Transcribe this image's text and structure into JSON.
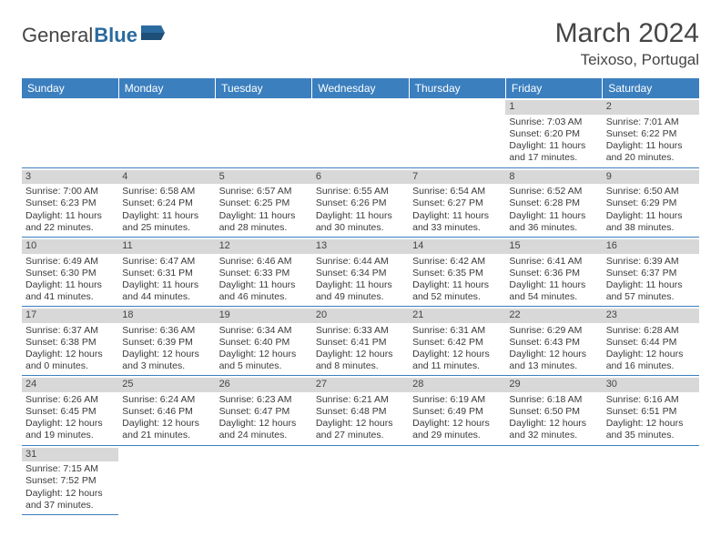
{
  "brand": {
    "part1": "General",
    "part2": "Blue"
  },
  "title": "March 2024",
  "location": "Teixoso, Portugal",
  "colors": {
    "header_bg": "#3b7fbf",
    "header_text": "#ffffff",
    "daynum_bg": "#d8d8d8",
    "text": "#3a3a3a",
    "rule": "#3b7fbf"
  },
  "weekdays": [
    "Sunday",
    "Monday",
    "Tuesday",
    "Wednesday",
    "Thursday",
    "Friday",
    "Saturday"
  ],
  "weeks": [
    [
      null,
      null,
      null,
      null,
      null,
      {
        "n": "1",
        "sr": "Sunrise: 7:03 AM",
        "ss": "Sunset: 6:20 PM",
        "d1": "Daylight: 11 hours",
        "d2": "and 17 minutes."
      },
      {
        "n": "2",
        "sr": "Sunrise: 7:01 AM",
        "ss": "Sunset: 6:22 PM",
        "d1": "Daylight: 11 hours",
        "d2": "and 20 minutes."
      }
    ],
    [
      {
        "n": "3",
        "sr": "Sunrise: 7:00 AM",
        "ss": "Sunset: 6:23 PM",
        "d1": "Daylight: 11 hours",
        "d2": "and 22 minutes."
      },
      {
        "n": "4",
        "sr": "Sunrise: 6:58 AM",
        "ss": "Sunset: 6:24 PM",
        "d1": "Daylight: 11 hours",
        "d2": "and 25 minutes."
      },
      {
        "n": "5",
        "sr": "Sunrise: 6:57 AM",
        "ss": "Sunset: 6:25 PM",
        "d1": "Daylight: 11 hours",
        "d2": "and 28 minutes."
      },
      {
        "n": "6",
        "sr": "Sunrise: 6:55 AM",
        "ss": "Sunset: 6:26 PM",
        "d1": "Daylight: 11 hours",
        "d2": "and 30 minutes."
      },
      {
        "n": "7",
        "sr": "Sunrise: 6:54 AM",
        "ss": "Sunset: 6:27 PM",
        "d1": "Daylight: 11 hours",
        "d2": "and 33 minutes."
      },
      {
        "n": "8",
        "sr": "Sunrise: 6:52 AM",
        "ss": "Sunset: 6:28 PM",
        "d1": "Daylight: 11 hours",
        "d2": "and 36 minutes."
      },
      {
        "n": "9",
        "sr": "Sunrise: 6:50 AM",
        "ss": "Sunset: 6:29 PM",
        "d1": "Daylight: 11 hours",
        "d2": "and 38 minutes."
      }
    ],
    [
      {
        "n": "10",
        "sr": "Sunrise: 6:49 AM",
        "ss": "Sunset: 6:30 PM",
        "d1": "Daylight: 11 hours",
        "d2": "and 41 minutes."
      },
      {
        "n": "11",
        "sr": "Sunrise: 6:47 AM",
        "ss": "Sunset: 6:31 PM",
        "d1": "Daylight: 11 hours",
        "d2": "and 44 minutes."
      },
      {
        "n": "12",
        "sr": "Sunrise: 6:46 AM",
        "ss": "Sunset: 6:33 PM",
        "d1": "Daylight: 11 hours",
        "d2": "and 46 minutes."
      },
      {
        "n": "13",
        "sr": "Sunrise: 6:44 AM",
        "ss": "Sunset: 6:34 PM",
        "d1": "Daylight: 11 hours",
        "d2": "and 49 minutes."
      },
      {
        "n": "14",
        "sr": "Sunrise: 6:42 AM",
        "ss": "Sunset: 6:35 PM",
        "d1": "Daylight: 11 hours",
        "d2": "and 52 minutes."
      },
      {
        "n": "15",
        "sr": "Sunrise: 6:41 AM",
        "ss": "Sunset: 6:36 PM",
        "d1": "Daylight: 11 hours",
        "d2": "and 54 minutes."
      },
      {
        "n": "16",
        "sr": "Sunrise: 6:39 AM",
        "ss": "Sunset: 6:37 PM",
        "d1": "Daylight: 11 hours",
        "d2": "and 57 minutes."
      }
    ],
    [
      {
        "n": "17",
        "sr": "Sunrise: 6:37 AM",
        "ss": "Sunset: 6:38 PM",
        "d1": "Daylight: 12 hours",
        "d2": "and 0 minutes."
      },
      {
        "n": "18",
        "sr": "Sunrise: 6:36 AM",
        "ss": "Sunset: 6:39 PM",
        "d1": "Daylight: 12 hours",
        "d2": "and 3 minutes."
      },
      {
        "n": "19",
        "sr": "Sunrise: 6:34 AM",
        "ss": "Sunset: 6:40 PM",
        "d1": "Daylight: 12 hours",
        "d2": "and 5 minutes."
      },
      {
        "n": "20",
        "sr": "Sunrise: 6:33 AM",
        "ss": "Sunset: 6:41 PM",
        "d1": "Daylight: 12 hours",
        "d2": "and 8 minutes."
      },
      {
        "n": "21",
        "sr": "Sunrise: 6:31 AM",
        "ss": "Sunset: 6:42 PM",
        "d1": "Daylight: 12 hours",
        "d2": "and 11 minutes."
      },
      {
        "n": "22",
        "sr": "Sunrise: 6:29 AM",
        "ss": "Sunset: 6:43 PM",
        "d1": "Daylight: 12 hours",
        "d2": "and 13 minutes."
      },
      {
        "n": "23",
        "sr": "Sunrise: 6:28 AM",
        "ss": "Sunset: 6:44 PM",
        "d1": "Daylight: 12 hours",
        "d2": "and 16 minutes."
      }
    ],
    [
      {
        "n": "24",
        "sr": "Sunrise: 6:26 AM",
        "ss": "Sunset: 6:45 PM",
        "d1": "Daylight: 12 hours",
        "d2": "and 19 minutes."
      },
      {
        "n": "25",
        "sr": "Sunrise: 6:24 AM",
        "ss": "Sunset: 6:46 PM",
        "d1": "Daylight: 12 hours",
        "d2": "and 21 minutes."
      },
      {
        "n": "26",
        "sr": "Sunrise: 6:23 AM",
        "ss": "Sunset: 6:47 PM",
        "d1": "Daylight: 12 hours",
        "d2": "and 24 minutes."
      },
      {
        "n": "27",
        "sr": "Sunrise: 6:21 AM",
        "ss": "Sunset: 6:48 PM",
        "d1": "Daylight: 12 hours",
        "d2": "and 27 minutes."
      },
      {
        "n": "28",
        "sr": "Sunrise: 6:19 AM",
        "ss": "Sunset: 6:49 PM",
        "d1": "Daylight: 12 hours",
        "d2": "and 29 minutes."
      },
      {
        "n": "29",
        "sr": "Sunrise: 6:18 AM",
        "ss": "Sunset: 6:50 PM",
        "d1": "Daylight: 12 hours",
        "d2": "and 32 minutes."
      },
      {
        "n": "30",
        "sr": "Sunrise: 6:16 AM",
        "ss": "Sunset: 6:51 PM",
        "d1": "Daylight: 12 hours",
        "d2": "and 35 minutes."
      }
    ],
    [
      {
        "n": "31",
        "sr": "Sunrise: 7:15 AM",
        "ss": "Sunset: 7:52 PM",
        "d1": "Daylight: 12 hours",
        "d2": "and 37 minutes."
      },
      null,
      null,
      null,
      null,
      null,
      null
    ]
  ]
}
